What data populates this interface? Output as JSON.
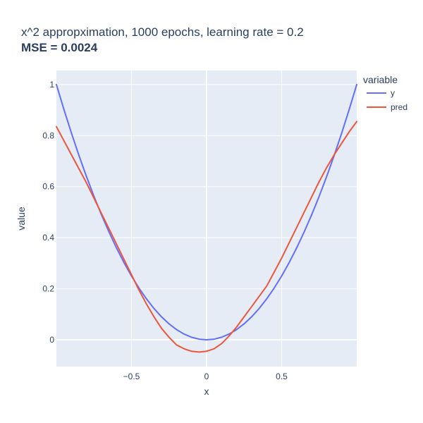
{
  "chart_data": {
    "type": "line",
    "title": "x^2 appropximation, 1000 epochs, learning rate = 0.2",
    "subtitle": "MSE = 0.0024",
    "xlabel": "x",
    "ylabel": "value",
    "xlim": [
      -1,
      1
    ],
    "ylim": [
      -0.105,
      1.055
    ],
    "x_ticks": [
      -0.5,
      0,
      0.5
    ],
    "x_tick_labels": [
      "−0.5",
      "0",
      "0.5"
    ],
    "y_ticks": [
      0,
      0.2,
      0.4,
      0.6,
      0.8,
      1
    ],
    "y_tick_labels": [
      "0",
      "0.2",
      "0.4",
      "0.6",
      "0.8",
      "1"
    ],
    "grid": true,
    "legend": {
      "title": "variable",
      "position": "right"
    },
    "x": [
      -1.0,
      -0.95,
      -0.9,
      -0.85,
      -0.8,
      -0.75,
      -0.7,
      -0.65,
      -0.6,
      -0.55,
      -0.5,
      -0.45,
      -0.4,
      -0.35,
      -0.3,
      -0.25,
      -0.2,
      -0.15,
      -0.1,
      -0.05,
      0.0,
      0.05,
      0.1,
      0.15,
      0.2,
      0.25,
      0.3,
      0.35,
      0.4,
      0.45,
      0.5,
      0.55,
      0.6,
      0.65,
      0.7,
      0.75,
      0.8,
      0.85,
      0.9,
      0.95,
      1.0
    ],
    "series": [
      {
        "name": "y",
        "color": "#636efa",
        "values": [
          1.0,
          0.9025,
          0.81,
          0.7225,
          0.64,
          0.5625,
          0.49,
          0.4225,
          0.36,
          0.3025,
          0.25,
          0.2025,
          0.16,
          0.1225,
          0.09,
          0.0625,
          0.04,
          0.0225,
          0.01,
          0.0025,
          0.0,
          0.0025,
          0.01,
          0.0225,
          0.04,
          0.0625,
          0.09,
          0.1225,
          0.16,
          0.2025,
          0.25,
          0.3025,
          0.36,
          0.4225,
          0.49,
          0.5625,
          0.64,
          0.7225,
          0.81,
          0.9025,
          1.0
        ]
      },
      {
        "name": "pred",
        "color": "#ef553b",
        "values": [
          0.835,
          0.78,
          0.725,
          0.67,
          0.615,
          0.555,
          0.495,
          0.435,
          0.375,
          0.315,
          0.255,
          0.195,
          0.14,
          0.09,
          0.045,
          0.01,
          -0.02,
          -0.035,
          -0.045,
          -0.048,
          -0.045,
          -0.035,
          -0.015,
          0.015,
          0.05,
          0.09,
          0.13,
          0.17,
          0.21,
          0.265,
          0.32,
          0.38,
          0.44,
          0.5,
          0.56,
          0.62,
          0.675,
          0.725,
          0.77,
          0.815,
          0.855
        ]
      }
    ]
  }
}
